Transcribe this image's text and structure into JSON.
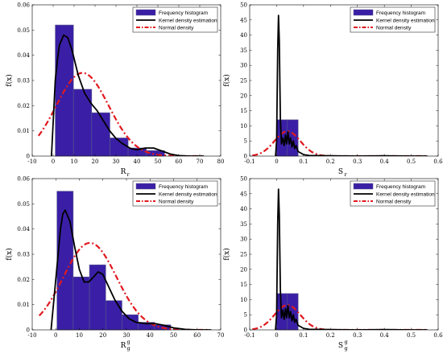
{
  "colors": {
    "bar_fill": "#3a1fa6",
    "bar_edge": "#5a5a8a",
    "kde": "#000000",
    "normal": "#e0191f"
  },
  "legend": {
    "hist": "Frequency histogram",
    "kde": "Kernel density estimation",
    "normal": "Normal density"
  },
  "chart_data": [
    {
      "type": "bar",
      "panel": "top-left",
      "ylabel": "f(x)",
      "xlabel_main": "R",
      "xlabel_sub": "r",
      "xlabel_sup": "",
      "xlim": [
        -10,
        80
      ],
      "ylim": [
        0,
        0.06
      ],
      "xticks": [
        "-10",
        "0",
        "10",
        "20",
        "30",
        "40",
        "50",
        "60",
        "70",
        "80"
      ],
      "yticks": [
        "0",
        "0.01",
        "0.02",
        "0.03",
        "0.04",
        "0.05",
        "0.06"
      ],
      "legend_position": "top-right",
      "bins": [
        [
          1,
          9.7,
          0.052
        ],
        [
          9.7,
          18.4,
          0.0265
        ],
        [
          18.4,
          27.1,
          0.0172
        ],
        [
          27.1,
          35.8,
          0.0072
        ],
        [
          35.8,
          44.5,
          0.0032
        ],
        [
          44.5,
          53.2,
          0.0022
        ]
      ],
      "kde": [
        [
          -0.8,
          0
        ],
        [
          1,
          0.03
        ],
        [
          2,
          0.038
        ],
        [
          3,
          0.044
        ],
        [
          5,
          0.048
        ],
        [
          7,
          0.047
        ],
        [
          9,
          0.042
        ],
        [
          12,
          0.032
        ],
        [
          15,
          0.025
        ],
        [
          18,
          0.021
        ],
        [
          21,
          0.018
        ],
        [
          24,
          0.014
        ],
        [
          27,
          0.01
        ],
        [
          30,
          0.007
        ],
        [
          33,
          0.005
        ],
        [
          37,
          0.003
        ],
        [
          40,
          0.0025
        ],
        [
          44,
          0.0032
        ],
        [
          48,
          0.0032
        ],
        [
          52,
          0.002
        ],
        [
          56,
          0.0008
        ],
        [
          60,
          0.0002
        ],
        [
          65,
          0
        ],
        [
          72,
          0
        ]
      ],
      "normal": {
        "mean": 14,
        "sd": 12.5,
        "peak": 0.033,
        "range": [
          -7,
          72
        ]
      }
    },
    {
      "type": "bar",
      "panel": "top-right",
      "ylabel": "f(x)",
      "xlabel_main": "S",
      "xlabel_sub": "r",
      "xlabel_sup": "",
      "xlim": [
        -0.1,
        0.6
      ],
      "ylim": [
        0,
        50
      ],
      "xticks": [
        "-0.1",
        "0",
        "0.1",
        "0.2",
        "0.3",
        "0.4",
        "0.5",
        "0.6"
      ],
      "yticks": [
        "0",
        "5",
        "10",
        "15",
        "20",
        "25",
        "30",
        "35",
        "40",
        "45",
        "50"
      ],
      "legend_position": "top-right",
      "bins": [
        [
          0,
          0.04,
          12
        ],
        [
          0.04,
          0.08,
          12
        ]
      ],
      "kde": [
        [
          -0.004,
          0
        ],
        [
          0,
          5
        ],
        [
          0.004,
          35
        ],
        [
          0.007,
          46.5
        ],
        [
          0.01,
          38
        ],
        [
          0.014,
          12
        ],
        [
          0.018,
          4
        ],
        [
          0.023,
          6
        ],
        [
          0.028,
          3.5
        ],
        [
          0.033,
          7
        ],
        [
          0.037,
          4
        ],
        [
          0.042,
          8
        ],
        [
          0.047,
          4
        ],
        [
          0.052,
          6
        ],
        [
          0.057,
          3
        ],
        [
          0.062,
          5
        ],
        [
          0.067,
          2.5
        ],
        [
          0.072,
          3.5
        ],
        [
          0.08,
          1.5
        ],
        [
          0.09,
          1
        ],
        [
          0.1,
          0.5
        ],
        [
          0.12,
          0.2
        ],
        [
          0.2,
          0.1
        ],
        [
          0.3,
          0
        ],
        [
          0.4,
          0.1
        ],
        [
          0.5,
          0
        ],
        [
          0.56,
          0
        ]
      ],
      "normal": {
        "mean": 0.04,
        "sd": 0.048,
        "peak": 8.2,
        "range": [
          -0.09,
          0.56
        ]
      }
    },
    {
      "type": "bar",
      "panel": "bottom-left",
      "ylabel": "f(x)",
      "xlabel_main": "R",
      "xlabel_sub": "g",
      "xlabel_sup": "g",
      "xlim": [
        -10,
        70
      ],
      "ylim": [
        0,
        0.06
      ],
      "xticks": [
        "-10",
        "0",
        "10",
        "20",
        "30",
        "40",
        "50",
        "60",
        "70"
      ],
      "yticks": [
        "0",
        "0.01",
        "0.02",
        "0.03",
        "0.04",
        "0.05",
        "0.06"
      ],
      "legend_position": "top-right",
      "bins": [
        [
          0.5,
          7.4,
          0.055
        ],
        [
          7.4,
          14.3,
          0.021
        ],
        [
          14.3,
          21.2,
          0.0258
        ],
        [
          21.2,
          28.1,
          0.0116
        ],
        [
          28.1,
          35,
          0.006
        ],
        [
          35,
          41.9,
          0.003
        ],
        [
          41.9,
          48.8,
          0.002
        ]
      ],
      "kde": [
        [
          -2,
          0
        ],
        [
          0,
          0.02
        ],
        [
          1,
          0.03
        ],
        [
          2,
          0.04
        ],
        [
          3,
          0.046
        ],
        [
          4,
          0.0475
        ],
        [
          6,
          0.043
        ],
        [
          8,
          0.033
        ],
        [
          10,
          0.024
        ],
        [
          12,
          0.019
        ],
        [
          14,
          0.019
        ],
        [
          16,
          0.021
        ],
        [
          18,
          0.023
        ],
        [
          20,
          0.022
        ],
        [
          22,
          0.018
        ],
        [
          25,
          0.012
        ],
        [
          28,
          0.0075
        ],
        [
          31,
          0.0045
        ],
        [
          34,
          0.003
        ],
        [
          38,
          0.0025
        ],
        [
          42,
          0.0025
        ],
        [
          46,
          0.0018
        ],
        [
          50,
          0.0008
        ],
        [
          55,
          0.0002
        ],
        [
          60,
          0
        ],
        [
          66,
          0
        ]
      ],
      "normal": {
        "mean": 14.5,
        "sd": 11.3,
        "peak": 0.0345,
        "range": [
          -7,
          65
        ]
      }
    },
    {
      "type": "bar",
      "panel": "bottom-right",
      "ylabel": "f(x)",
      "xlabel_main": "S",
      "xlabel_sub": "g",
      "xlabel_sup": "g",
      "xlim": [
        -0.1,
        0.6
      ],
      "ylim": [
        0,
        50
      ],
      "xticks": [
        "-0.1",
        "0",
        "0.1",
        "0.2",
        "0.3",
        "0.4",
        "0.5",
        "0.6"
      ],
      "yticks": [
        "0",
        "5",
        "10",
        "15",
        "20",
        "25",
        "30",
        "35",
        "40",
        "45",
        "50"
      ],
      "legend_position": "top-right",
      "bins": [
        [
          0,
          0.04,
          12
        ],
        [
          0.04,
          0.08,
          12
        ]
      ],
      "kde": [
        [
          -0.004,
          0
        ],
        [
          0,
          5
        ],
        [
          0.004,
          35
        ],
        [
          0.007,
          46.5
        ],
        [
          0.01,
          38
        ],
        [
          0.014,
          13
        ],
        [
          0.018,
          4
        ],
        [
          0.023,
          6.5
        ],
        [
          0.028,
          3.5
        ],
        [
          0.033,
          7
        ],
        [
          0.037,
          4
        ],
        [
          0.042,
          8
        ],
        [
          0.047,
          4
        ],
        [
          0.052,
          6
        ],
        [
          0.057,
          3
        ],
        [
          0.062,
          5
        ],
        [
          0.067,
          2.5
        ],
        [
          0.072,
          3.5
        ],
        [
          0.08,
          1.5
        ],
        [
          0.09,
          1
        ],
        [
          0.1,
          0.5
        ],
        [
          0.12,
          0.2
        ],
        [
          0.2,
          0.1
        ],
        [
          0.3,
          0
        ],
        [
          0.4,
          0.1
        ],
        [
          0.5,
          0
        ],
        [
          0.56,
          0
        ]
      ],
      "normal": {
        "mean": 0.04,
        "sd": 0.048,
        "peak": 8.2,
        "range": [
          -0.09,
          0.56
        ]
      }
    }
  ]
}
